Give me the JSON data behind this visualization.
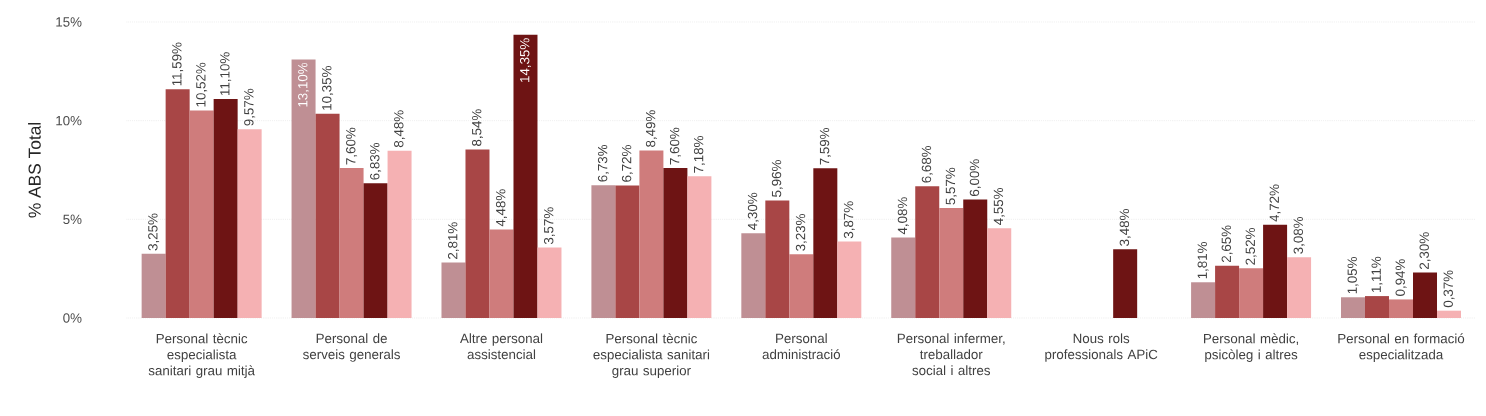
{
  "chart_data": {
    "type": "bar",
    "ylabel": "% ABS Total",
    "categories": [
      "Personal tècnic especialista sanitari grau mitjà",
      "Personal de serveis generals",
      "Altre personal assistencial",
      "Personal tècnic especialista sanitari grau superior",
      "Personal administració",
      "Personal infermer, treballador social i altres",
      "Nous rols professionals APiC",
      "Personal mèdic, psicòleg i altres",
      "Personal en formació especialitzada"
    ],
    "series": [
      {
        "color": "#bf8f94",
        "values": [
          3.25,
          13.1,
          2.81,
          6.73,
          4.3,
          4.08,
          null,
          1.81,
          1.05
        ],
        "value_labels": [
          "3,25%",
          "13,10%",
          "2,81%",
          "6,73%",
          "4,30%",
          "4,08%",
          null,
          "1,81%",
          "1,05%"
        ]
      },
      {
        "color": "#a84646",
        "values": [
          11.59,
          10.35,
          8.54,
          6.72,
          5.96,
          6.68,
          null,
          2.65,
          1.11
        ],
        "value_labels": [
          "11,59%",
          "10,35%",
          "8,54%",
          "6,72%",
          "5,96%",
          "6,68%",
          null,
          "2,65%",
          "1,11%"
        ]
      },
      {
        "color": "#cf7c7c",
        "values": [
          10.52,
          7.6,
          4.48,
          8.49,
          3.23,
          5.57,
          null,
          2.52,
          0.94
        ],
        "value_labels": [
          "10,52%",
          "7,60%",
          "4,48%",
          "8,49%",
          "3,23%",
          "5,57%",
          null,
          "2,52%",
          "0,94%"
        ]
      },
      {
        "color": "#6e1414",
        "values": [
          11.1,
          6.83,
          14.35,
          7.6,
          7.59,
          6.0,
          3.48,
          4.72,
          2.3
        ],
        "value_labels": [
          "11,10%",
          "6,83%",
          "14,35%",
          "7,60%",
          "7,59%",
          "6,00%",
          "3,48%",
          "4,72%",
          "2,30%"
        ]
      },
      {
        "color": "#f5b1b3",
        "values": [
          9.57,
          8.48,
          3.57,
          7.18,
          3.87,
          4.55,
          null,
          3.08,
          0.37
        ],
        "value_labels": [
          "9,57%",
          "8,48%",
          "3,57%",
          "7,18%",
          "3,87%",
          "4,55%",
          null,
          "3,08%",
          "0,37%"
        ]
      }
    ],
    "ylim": [
      0,
      15
    ],
    "yticks": [
      {
        "value": 0,
        "label": "0%"
      },
      {
        "value": 5,
        "label": "5%"
      },
      {
        "value": 10,
        "label": "10%"
      },
      {
        "value": 15,
        "label": "15%"
      }
    ],
    "grid": "y"
  }
}
